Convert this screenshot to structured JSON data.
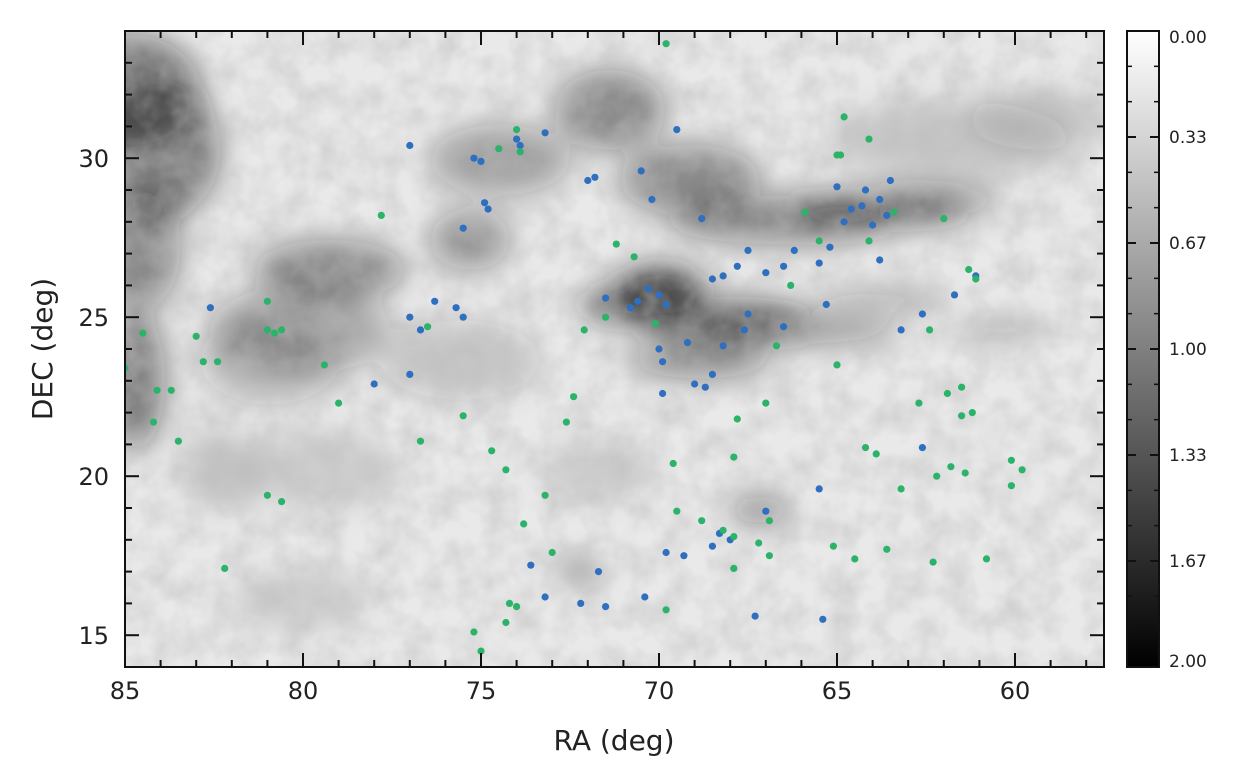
{
  "chart_data": {
    "type": "scatter",
    "xlabel": "RA (deg)",
    "ylabel": "DEC (deg)",
    "xlim": [
      85,
      57.5
    ],
    "ylim": [
      14,
      34
    ],
    "x_reversed": true,
    "xticks": [
      "85",
      "80",
      "75",
      "70",
      "65",
      "60"
    ],
    "yticks": [
      "15",
      "20",
      "25",
      "30"
    ],
    "background": "grayscale extinction map, darker = higher value",
    "colorbar": {
      "ticks": [
        "0.00",
        "0.33",
        "0.67",
        "1.00",
        "1.33",
        "1.67",
        "2.00"
      ],
      "range": [
        0,
        2
      ],
      "colormap": "white-to-black"
    },
    "series": [
      {
        "color": "#2e6fc0",
        "points": [
          [
            82.6,
            25.3
          ],
          [
            77,
            30.4
          ],
          [
            77,
            25
          ],
          [
            77,
            23.2
          ],
          [
            78,
            22.9
          ],
          [
            76.7,
            24.6
          ],
          [
            76.3,
            25.5
          ],
          [
            75.7,
            25.3
          ],
          [
            75.5,
            25
          ],
          [
            75.5,
            27.8
          ],
          [
            75.2,
            30
          ],
          [
            75,
            29.9
          ],
          [
            74.9,
            28.6
          ],
          [
            74.8,
            28.4
          ],
          [
            74,
            30.6
          ],
          [
            73.9,
            30.4
          ],
          [
            73.2,
            30.8
          ],
          [
            71.8,
            29.4
          ],
          [
            72,
            29.3
          ],
          [
            70.5,
            29.6
          ],
          [
            69.5,
            30.9
          ],
          [
            70.2,
            28.7
          ],
          [
            71.5,
            25.6
          ],
          [
            70.8,
            25.3
          ],
          [
            70.6,
            25.5
          ],
          [
            70.3,
            25.9
          ],
          [
            70,
            25.7
          ],
          [
            69.8,
            25.4
          ],
          [
            70,
            24
          ],
          [
            69.9,
            23.6
          ],
          [
            69.2,
            24.2
          ],
          [
            69,
            22.9
          ],
          [
            68.7,
            22.8
          ],
          [
            68.5,
            23.2
          ],
          [
            68.2,
            24.1
          ],
          [
            67.6,
            24.6
          ],
          [
            67.5,
            25.1
          ],
          [
            68.5,
            26.2
          ],
          [
            68.2,
            26.3
          ],
          [
            67.8,
            26.6
          ],
          [
            67.5,
            27.1
          ],
          [
            67,
            26.4
          ],
          [
            66.5,
            26.6
          ],
          [
            66.2,
            27.1
          ],
          [
            65.5,
            26.7
          ],
          [
            65.2,
            27.2
          ],
          [
            64.8,
            28
          ],
          [
            64.6,
            28.4
          ],
          [
            64.3,
            28.5
          ],
          [
            63.8,
            28.7
          ],
          [
            63.5,
            29.3
          ],
          [
            64.2,
            29
          ],
          [
            65,
            29.1
          ],
          [
            63.6,
            28.2
          ],
          [
            64,
            27.9
          ],
          [
            66.5,
            24.7
          ],
          [
            65.3,
            25.4
          ],
          [
            63.2,
            24.6
          ],
          [
            62.6,
            25.1
          ],
          [
            61.7,
            25.7
          ],
          [
            61.1,
            26.3
          ],
          [
            62.6,
            20.9
          ],
          [
            65.5,
            19.6
          ],
          [
            65.4,
            15.5
          ],
          [
            67.3,
            15.6
          ],
          [
            68.3,
            18.2
          ],
          [
            68.5,
            17.8
          ],
          [
            68,
            18
          ],
          [
            67,
            18.9
          ],
          [
            69.3,
            17.5
          ],
          [
            69.8,
            17.6
          ],
          [
            70.4,
            16.2
          ],
          [
            71.7,
            17
          ],
          [
            72.2,
            16
          ],
          [
            71.5,
            15.9
          ],
          [
            73.2,
            16.2
          ],
          [
            73.6,
            17.2
          ],
          [
            63.8,
            26.8
          ],
          [
            68.8,
            28.1
          ],
          [
            69.9,
            22.6
          ]
        ]
      },
      {
        "color": "#2cb36a",
        "points": [
          [
            85,
            23.4
          ],
          [
            84.5,
            24.5
          ],
          [
            84.1,
            22.7
          ],
          [
            84.2,
            21.7
          ],
          [
            83.7,
            22.7
          ],
          [
            83.5,
            21.1
          ],
          [
            83,
            24.4
          ],
          [
            82.8,
            23.6
          ],
          [
            82.4,
            23.6
          ],
          [
            82.2,
            17.1
          ],
          [
            81,
            25.5
          ],
          [
            81,
            24.6
          ],
          [
            80.8,
            24.5
          ],
          [
            80.6,
            24.6
          ],
          [
            81,
            19.4
          ],
          [
            80.6,
            19.2
          ],
          [
            79.4,
            23.5
          ],
          [
            79,
            22.3
          ],
          [
            77.8,
            28.2
          ],
          [
            76.7,
            21.1
          ],
          [
            76.5,
            24.7
          ],
          [
            75.5,
            21.9
          ],
          [
            75.2,
            15.1
          ],
          [
            75,
            14.5
          ],
          [
            74.7,
            20.8
          ],
          [
            74.3,
            20.2
          ],
          [
            74,
            30.9
          ],
          [
            73.9,
            30.2
          ],
          [
            74.5,
            30.3
          ],
          [
            74.2,
            16
          ],
          [
            74,
            15.9
          ],
          [
            74.3,
            15.4
          ],
          [
            73.8,
            18.5
          ],
          [
            73.2,
            19.4
          ],
          [
            73,
            17.6
          ],
          [
            72.6,
            21.7
          ],
          [
            72.4,
            22.5
          ],
          [
            72.1,
            24.6
          ],
          [
            71.5,
            25
          ],
          [
            71.2,
            27.3
          ],
          [
            70.7,
            26.9
          ],
          [
            69.8,
            33.6
          ],
          [
            70.1,
            24.8
          ],
          [
            69.6,
            20.4
          ],
          [
            69.8,
            15.8
          ],
          [
            69.5,
            18.9
          ],
          [
            68.8,
            18.6
          ],
          [
            68.2,
            18.3
          ],
          [
            67.9,
            18.1
          ],
          [
            66.9,
            18.6
          ],
          [
            66.9,
            17.5
          ],
          [
            67.9,
            17.1
          ],
          [
            67.9,
            20.6
          ],
          [
            67.8,
            21.8
          ],
          [
            67,
            22.3
          ],
          [
            66.7,
            24.1
          ],
          [
            66.3,
            26
          ],
          [
            65.5,
            27.4
          ],
          [
            65.9,
            28.3
          ],
          [
            64.8,
            31.3
          ],
          [
            65,
            30.1
          ],
          [
            64.9,
            30.1
          ],
          [
            64.1,
            30.6
          ],
          [
            64.1,
            27.4
          ],
          [
            63.4,
            28.3
          ],
          [
            65,
            23.5
          ],
          [
            65.1,
            17.8
          ],
          [
            64.5,
            17.4
          ],
          [
            63.6,
            17.7
          ],
          [
            62.3,
            17.3
          ],
          [
            63.2,
            19.6
          ],
          [
            62.7,
            22.3
          ],
          [
            61.9,
            22.6
          ],
          [
            61.5,
            22.8
          ],
          [
            61.5,
            21.9
          ],
          [
            61.2,
            22
          ],
          [
            61.8,
            20.3
          ],
          [
            61.4,
            20.1
          ],
          [
            62.2,
            20
          ],
          [
            60.8,
            17.4
          ],
          [
            60.1,
            20.5
          ],
          [
            60.1,
            19.7
          ],
          [
            59.8,
            20.2
          ],
          [
            61.3,
            26.5
          ],
          [
            61.1,
            26.2
          ],
          [
            62,
            28.1
          ],
          [
            62.4,
            24.6
          ],
          [
            64.2,
            20.9
          ],
          [
            63.9,
            20.7
          ],
          [
            67.2,
            17.9
          ]
        ]
      }
    ]
  }
}
